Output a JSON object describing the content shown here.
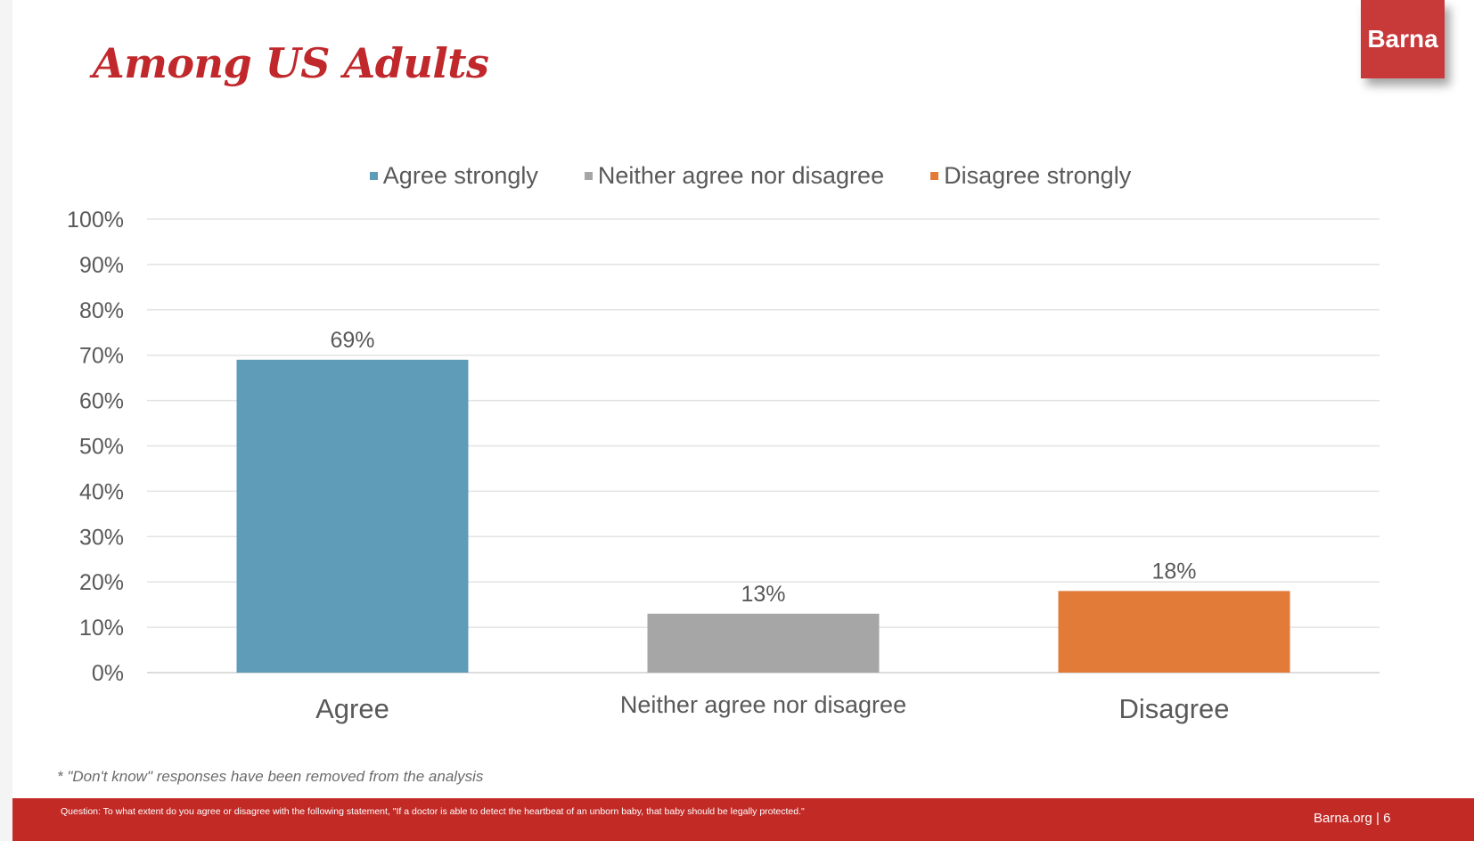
{
  "slide": {
    "title": "Among US Adults",
    "brand": "Barna",
    "footnote": "* \"Don't know\" responses have been removed from the analysis",
    "question": "Question: To what extent do you agree or disagree with the following statement, \"If a doctor is able to detect the heartbeat of an unborn baby, that baby should be legally protected.\"",
    "page_ref": "Barna.org | 6"
  },
  "chart_data": {
    "type": "bar",
    "categories": [
      "Agree",
      "Neither agree nor disagree",
      "Disagree"
    ],
    "series": [
      {
        "name": "Agree strongly",
        "values": [
          69,
          null,
          null
        ],
        "color": "#5f9cb8"
      },
      {
        "name": "Neither agree nor disagree",
        "values": [
          null,
          13,
          null
        ],
        "color": "#a6a6a6"
      },
      {
        "name": "Disagree strongly",
        "values": [
          null,
          null,
          18
        ],
        "color": "#e27b38"
      }
    ],
    "data_labels": [
      "69%",
      "13%",
      "18%"
    ],
    "yticks": [
      "0%",
      "10%",
      "20%",
      "30%",
      "40%",
      "50%",
      "60%",
      "70%",
      "80%",
      "90%",
      "100%"
    ],
    "ylim": [
      0,
      100
    ],
    "grid": true,
    "legend_position": "top"
  }
}
